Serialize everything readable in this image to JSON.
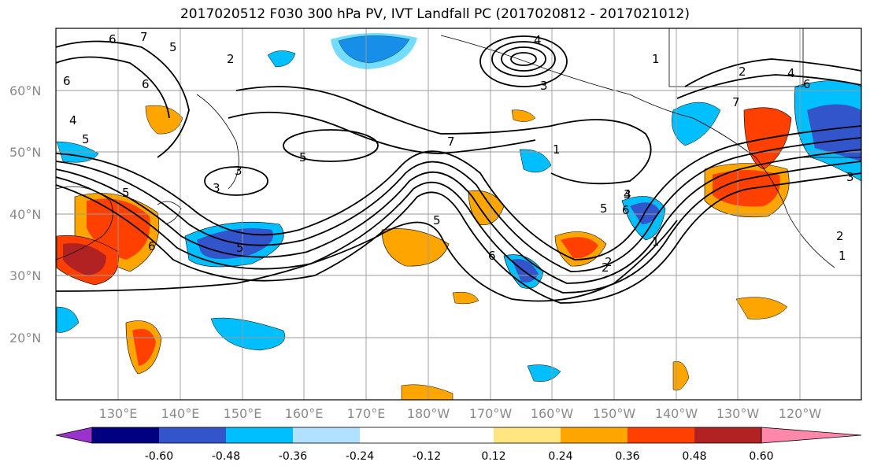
{
  "title": "2017020512 F030 300 hPa PV, IVT Landfall PC (2017020812 - 2017021012)",
  "lat_labels": [
    "60°N",
    "50°N",
    "40°N",
    "30°N",
    "20°N"
  ],
  "lon_labels": [
    "130°E",
    "140°E",
    "150°E",
    "160°E",
    "170°E",
    "180°W",
    "170°W",
    "160°W",
    "150°W",
    "140°W",
    "130°W",
    "120°W"
  ],
  "colorbar": {
    "colors": [
      "#9933cc",
      "#000080",
      "#3355cc",
      "#00bfff",
      "#b0e2ff",
      "#ffffff",
      "#ffe680",
      "#ffa500",
      "#ff4000",
      "#b22222",
      "#ff88aa"
    ],
    "tick_labels": [
      "-0.60",
      "-0.48",
      "-0.36",
      "-0.24",
      "-0.12",
      "0.12",
      "0.24",
      "0.36",
      "0.48",
      "0.60"
    ]
  },
  "contour_labels": [
    "6",
    "7",
    "5",
    "2",
    "6",
    "4",
    "5",
    "3",
    "5",
    "7",
    "1",
    "4",
    "3",
    "1",
    "2",
    "4",
    "6",
    "7",
    "5",
    "3",
    "5",
    "2",
    "6",
    "5",
    "6",
    "6",
    "3",
    "4",
    "5",
    "6",
    "1",
    "2",
    "3",
    "1",
    "2"
  ],
  "colors": {
    "contour": "#000000",
    "grid": "#9a9a9a",
    "coast": "#000000"
  }
}
